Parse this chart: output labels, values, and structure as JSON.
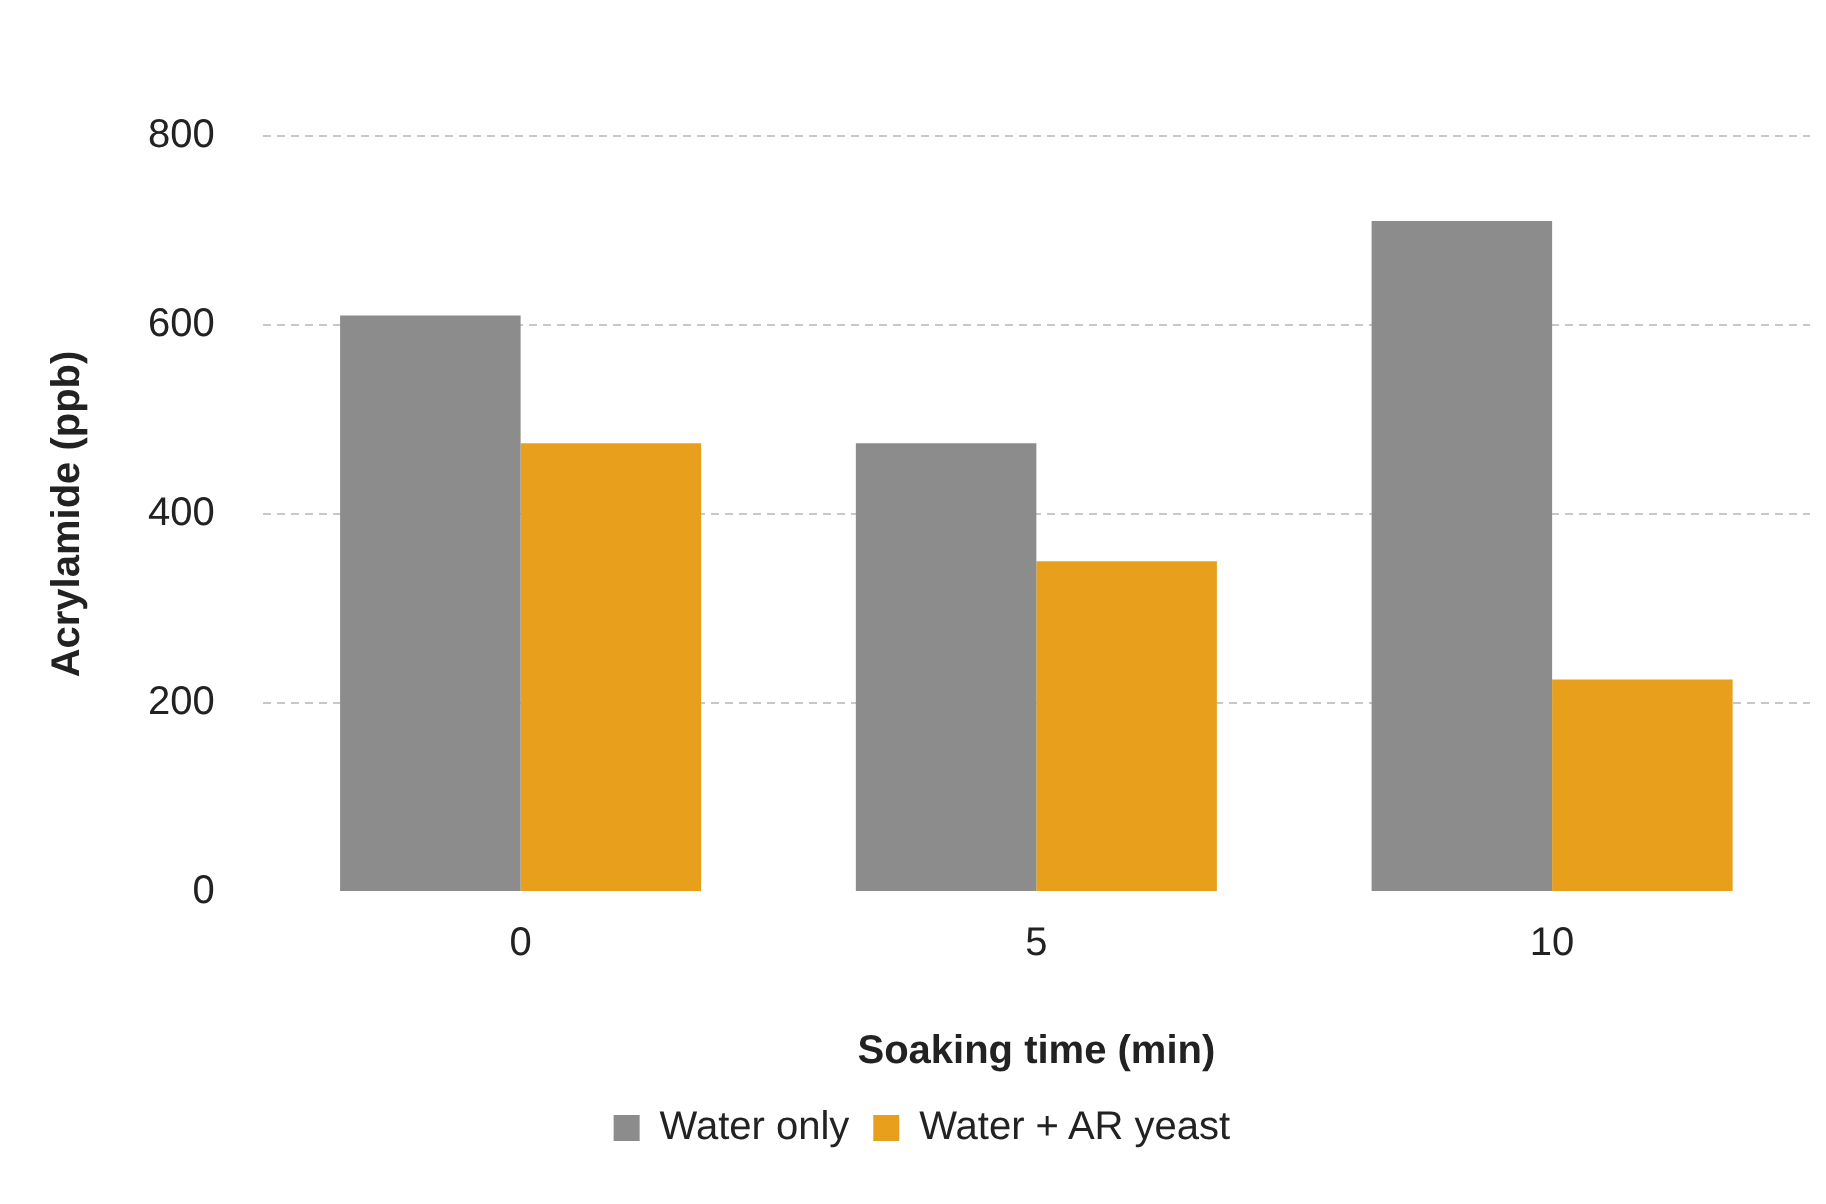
{
  "chart_data": {
    "type": "bar",
    "xlabel": "Soaking time (min)",
    "ylabel": "Acrylamide (ppb)",
    "categories": [
      "0",
      "5",
      "10"
    ],
    "series": [
      {
        "name": "Water only",
        "color": "#8c8c8c",
        "values": [
          610,
          475,
          710
        ]
      },
      {
        "name": "Water + AR yeast",
        "color": "#e8a01c",
        "values": [
          475,
          350,
          225
        ]
      }
    ],
    "ylim": [
      0,
      800
    ],
    "yticks": [
      0,
      200,
      400,
      600,
      800
    ],
    "grid": "y",
    "legend": "bottom"
  }
}
